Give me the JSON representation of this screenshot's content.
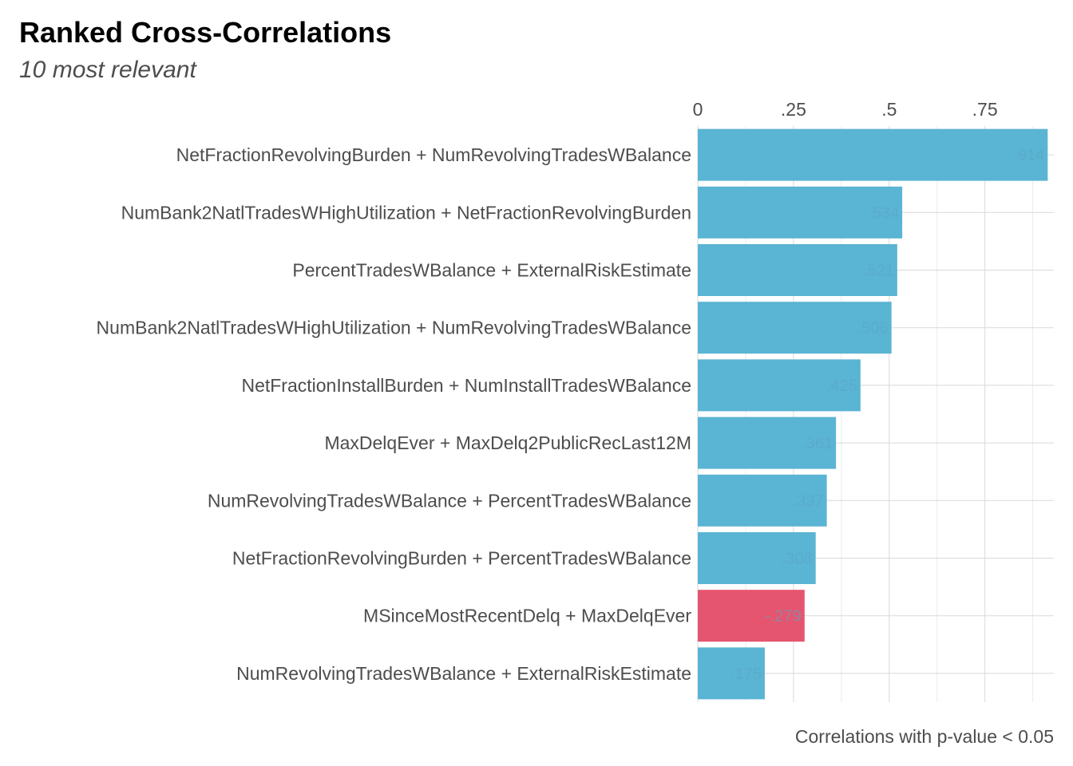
{
  "chart_data": {
    "type": "bar",
    "orientation": "horizontal",
    "title": "Ranked Cross-Correlations",
    "subtitle": "10 most relevant",
    "caption": "Correlations with p-value < 0.05",
    "x_axis_position": "top",
    "xlim": [
      0,
      0.93
    ],
    "x_ticks": [
      0,
      0.25,
      0.5,
      0.75
    ],
    "x_tick_labels": [
      "0",
      ".25",
      ".5",
      ".75"
    ],
    "grid": true,
    "legend": "none",
    "colors": {
      "positive": "#5ab4d3",
      "negative": "#e5556f"
    },
    "categories": [
      "NetFractionRevolvingBurden + NumRevolvingTradesWBalance",
      "NumBank2NatlTradesWHighUtilization + NetFractionRevolvingBurden",
      "PercentTradesWBalance + ExternalRiskEstimate",
      "NumBank2NatlTradesWHighUtilization + NumRevolvingTradesWBalance",
      "NetFractionInstallBurden + NumInstallTradesWBalance",
      "MaxDelqEver + MaxDelq2PublicRecLast12M",
      "NumRevolvingTradesWBalance + PercentTradesWBalance",
      "NetFractionRevolvingBurden + PercentTradesWBalance",
      "MSinceMostRecentDelq + MaxDelqEver",
      "NumRevolvingTradesWBalance + ExternalRiskEstimate"
    ],
    "values": [
      0.914,
      0.534,
      0.521,
      0.506,
      0.425,
      0.361,
      0.337,
      0.308,
      -0.279,
      0.175
    ],
    "data_labels": [
      ".914",
      ".534",
      ".521",
      ".506",
      ".425",
      ".361",
      ".337",
      ".308",
      "-.279",
      ".175"
    ]
  }
}
